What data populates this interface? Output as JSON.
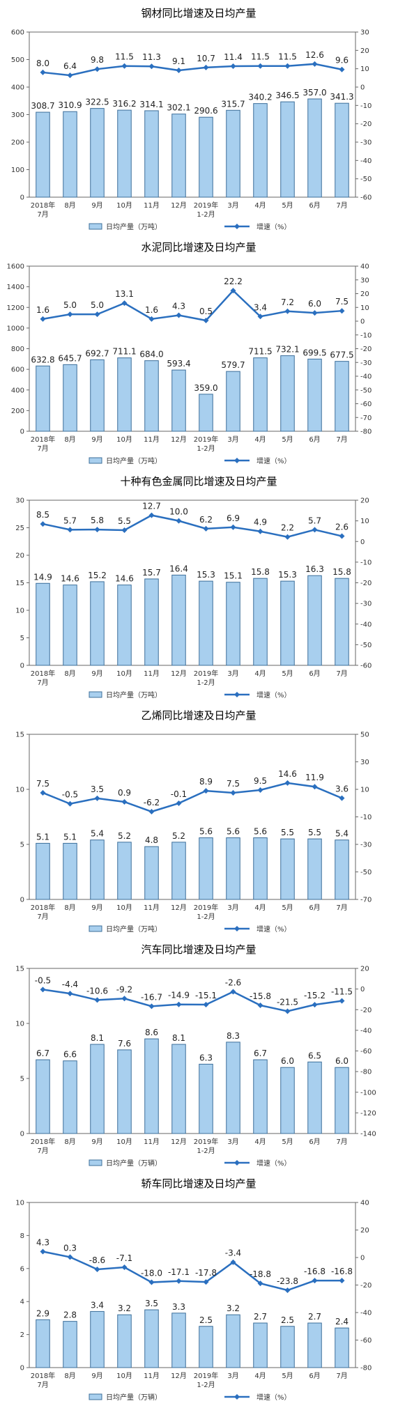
{
  "colors": {
    "bar_fill": "#a8cfee",
    "bar_stroke": "#3d6f9a",
    "line": "#2a6fbf",
    "axis": "#666666"
  },
  "chart_data": [
    {
      "type": "bar+line",
      "title": "钢材同比增速及日均产量",
      "categories": [
        [
          "2018年",
          "7月"
        ],
        [
          "8月"
        ],
        [
          "9月"
        ],
        [
          "10月"
        ],
        [
          "11月"
        ],
        [
          "12月"
        ],
        [
          "2019年",
          "1-2月"
        ],
        [
          "3月"
        ],
        [
          "4月"
        ],
        [
          "5月"
        ],
        [
          "6月"
        ],
        [
          "7月"
        ]
      ],
      "left_axis": {
        "min": 0,
        "max": 600,
        "ticks": [
          0,
          100,
          200,
          300,
          400,
          500,
          600
        ]
      },
      "right_axis": {
        "min": -60,
        "max": 30,
        "ticks": [
          -60,
          -50,
          -40,
          -30,
          -20,
          -10,
          0,
          10,
          20,
          30
        ]
      },
      "series": [
        {
          "name": "日均产量（万吨）",
          "kind": "bar",
          "axis": "left",
          "values": [
            308.7,
            310.9,
            322.5,
            316.2,
            314.1,
            302.1,
            290.6,
            315.7,
            340.2,
            346.5,
            357.0,
            341.3
          ],
          "labels": [
            "308.7",
            "310.9",
            "322.5",
            "316.2",
            "314.1",
            "302.1",
            "290.6",
            "315.7",
            "340.2",
            "346.5",
            "357.0",
            "341.3"
          ]
        },
        {
          "name": "增速（%）",
          "kind": "line",
          "axis": "right",
          "values": [
            8.0,
            6.4,
            9.8,
            11.5,
            11.3,
            9.1,
            10.7,
            11.4,
            11.5,
            11.5,
            12.6,
            9.6
          ],
          "labels": [
            "8.0",
            "6.4",
            "9.8",
            "11.5",
            "11.3",
            "9.1",
            "10.7",
            "11.4",
            "11.5",
            "11.5",
            "12.6",
            "9.6"
          ]
        }
      ]
    },
    {
      "type": "bar+line",
      "title": "水泥同比增速及日均产量",
      "categories": [
        [
          "2018年",
          "7月"
        ],
        [
          "8月"
        ],
        [
          "9月"
        ],
        [
          "10月"
        ],
        [
          "11月"
        ],
        [
          "12月"
        ],
        [
          "2019年",
          "1-2月"
        ],
        [
          "3月"
        ],
        [
          "4月"
        ],
        [
          "5月"
        ],
        [
          "6月"
        ],
        [
          "7月"
        ]
      ],
      "left_axis": {
        "min": 0,
        "max": 1600,
        "ticks": [
          0,
          200,
          400,
          600,
          800,
          1000,
          1200,
          1400,
          1600
        ]
      },
      "right_axis": {
        "min": -80,
        "max": 40,
        "ticks": [
          -80,
          -70,
          -60,
          -50,
          -40,
          -30,
          -20,
          -10,
          0,
          10,
          20,
          30,
          40
        ]
      },
      "series": [
        {
          "name": "日均产量（万吨）",
          "kind": "bar",
          "axis": "left",
          "values": [
            632.8,
            645.7,
            692.7,
            711.1,
            684.0,
            593.4,
            359.0,
            579.7,
            711.5,
            732.1,
            699.5,
            677.5
          ],
          "labels": [
            "632.8",
            "645.7",
            "692.7",
            "711.1",
            "684.0",
            "593.4",
            "359.0",
            "579.7",
            "711.5",
            "732.1",
            "699.5",
            "677.5"
          ]
        },
        {
          "name": "增速（%）",
          "kind": "line",
          "axis": "right",
          "values": [
            1.6,
            5.0,
            5.0,
            13.1,
            1.6,
            4.3,
            0.5,
            22.2,
            3.4,
            7.2,
            6.0,
            7.5
          ],
          "labels": [
            "1.6",
            "5.0",
            "5.0",
            "13.1",
            "1.6",
            "4.3",
            "0.5",
            "22.2",
            "3.4",
            "7.2",
            "6.0",
            "7.5"
          ]
        }
      ]
    },
    {
      "type": "bar+line",
      "title": "十种有色金属同比增速及日均产量",
      "categories": [
        [
          "2018年",
          "7月"
        ],
        [
          "8月"
        ],
        [
          "9月"
        ],
        [
          "10月"
        ],
        [
          "11月"
        ],
        [
          "12月"
        ],
        [
          "2019年",
          "1-2月"
        ],
        [
          "3月"
        ],
        [
          "4月"
        ],
        [
          "5月"
        ],
        [
          "6月"
        ],
        [
          "7月"
        ]
      ],
      "left_axis": {
        "min": 0,
        "max": 30,
        "ticks": [
          0,
          5,
          10,
          15,
          20,
          25,
          30
        ]
      },
      "right_axis": {
        "min": -60,
        "max": 20,
        "ticks": [
          -60,
          -50,
          -40,
          -30,
          -20,
          -10,
          0,
          10,
          20
        ]
      },
      "series": [
        {
          "name": "日均产量（万吨）",
          "kind": "bar",
          "axis": "left",
          "values": [
            14.9,
            14.6,
            15.2,
            14.6,
            15.7,
            16.4,
            15.3,
            15.1,
            15.8,
            15.3,
            16.3,
            15.8
          ],
          "labels": [
            "14.9",
            "14.6",
            "15.2",
            "14.6",
            "15.7",
            "16.4",
            "15.3",
            "15.1",
            "15.8",
            "15.3",
            "16.3",
            "15.8"
          ]
        },
        {
          "name": "增速（%）",
          "kind": "line",
          "axis": "right",
          "values": [
            8.5,
            5.7,
            5.8,
            5.5,
            12.7,
            10.0,
            6.2,
            6.9,
            4.9,
            2.2,
            5.7,
            2.6
          ],
          "labels": [
            "8.5",
            "5.7",
            "5.8",
            "5.5",
            "12.7",
            "10.0",
            "6.2",
            "6.9",
            "4.9",
            "2.2",
            "5.7",
            "2.6"
          ]
        }
      ]
    },
    {
      "type": "bar+line",
      "title": "乙烯同比增速及日均产量",
      "categories": [
        [
          "2018年",
          "7月"
        ],
        [
          "8月"
        ],
        [
          "9月"
        ],
        [
          "10月"
        ],
        [
          "11月"
        ],
        [
          "12月"
        ],
        [
          "2019年",
          "1-2月"
        ],
        [
          "3月"
        ],
        [
          "4月"
        ],
        [
          "5月"
        ],
        [
          "6月"
        ],
        [
          "7月"
        ]
      ],
      "left_axis": {
        "min": 0,
        "max": 15,
        "ticks": [
          0,
          5,
          10,
          15
        ]
      },
      "right_axis": {
        "min": -70,
        "max": 50,
        "ticks": [
          -70,
          -50,
          -30,
          -10,
          10,
          30,
          50
        ]
      },
      "series": [
        {
          "name": "日均产量（万吨）",
          "kind": "bar",
          "axis": "left",
          "values": [
            5.1,
            5.1,
            5.4,
            5.2,
            4.8,
            5.2,
            5.6,
            5.6,
            5.6,
            5.5,
            5.5,
            5.4
          ],
          "labels": [
            "5.1",
            "5.1",
            "5.4",
            "5.2",
            "4.8",
            "5.2",
            "5.6",
            "5.6",
            "5.6",
            "5.5",
            "5.5",
            "5.4"
          ]
        },
        {
          "name": "增速（%）",
          "kind": "line",
          "axis": "right",
          "values": [
            7.5,
            -0.5,
            3.5,
            0.9,
            -6.2,
            -0.1,
            8.9,
            7.5,
            9.5,
            14.6,
            11.9,
            3.6
          ],
          "labels": [
            "7.5",
            "-0.5",
            "3.5",
            "0.9",
            "-6.2",
            "-0.1",
            "8.9",
            "7.5",
            "9.5",
            "14.6",
            "11.9",
            "3.6"
          ]
        }
      ]
    },
    {
      "type": "bar+line",
      "title": "汽车同比增速及日均产量",
      "categories": [
        [
          "2018年",
          "7月"
        ],
        [
          "8月"
        ],
        [
          "9月"
        ],
        [
          "10月"
        ],
        [
          "11月"
        ],
        [
          "12月"
        ],
        [
          "2019年",
          "1-2月"
        ],
        [
          "3月"
        ],
        [
          "4月"
        ],
        [
          "5月"
        ],
        [
          "6月"
        ],
        [
          "7月"
        ]
      ],
      "left_axis": {
        "min": 0,
        "max": 15,
        "ticks": [
          0,
          5,
          10,
          15
        ]
      },
      "right_axis": {
        "min": -140,
        "max": 20,
        "ticks": [
          -140,
          -120,
          -100,
          -80,
          -60,
          -40,
          -20,
          0,
          20
        ]
      },
      "series": [
        {
          "name": "日均产量（万辆）",
          "kind": "bar",
          "axis": "left",
          "values": [
            6.7,
            6.6,
            8.1,
            7.6,
            8.6,
            8.1,
            6.3,
            8.3,
            6.7,
            6.0,
            6.5,
            6.0
          ],
          "labels": [
            "6.7",
            "6.6",
            "8.1",
            "7.6",
            "8.6",
            "8.1",
            "6.3",
            "8.3",
            "6.7",
            "6.0",
            "6.5",
            "6.0"
          ]
        },
        {
          "name": "增速（%）",
          "kind": "line",
          "axis": "right",
          "values": [
            -0.5,
            -4.4,
            -10.6,
            -9.2,
            -16.7,
            -14.9,
            -15.1,
            -2.6,
            -15.8,
            -21.5,
            -15.2,
            -11.5
          ],
          "labels": [
            "-0.5",
            "-4.4",
            "-10.6",
            "-9.2",
            "-16.7",
            "-14.9",
            "-15.1",
            "-2.6",
            "-15.8",
            "-21.5",
            "-15.2",
            "-11.5"
          ]
        }
      ]
    },
    {
      "type": "bar+line",
      "title": "轿车同比增速及日均产量",
      "categories": [
        [
          "2018年",
          "7月"
        ],
        [
          "8月"
        ],
        [
          "9月"
        ],
        [
          "10月"
        ],
        [
          "11月"
        ],
        [
          "12月"
        ],
        [
          "2019年",
          "1-2月"
        ],
        [
          "3月"
        ],
        [
          "4月"
        ],
        [
          "5月"
        ],
        [
          "6月"
        ],
        [
          "7月"
        ]
      ],
      "left_axis": {
        "min": 0,
        "max": 10,
        "ticks": [
          0,
          2,
          4,
          6,
          8,
          10
        ]
      },
      "right_axis": {
        "min": -80,
        "max": 40,
        "ticks": [
          -80,
          -60,
          -40,
          -20,
          0,
          20,
          40
        ]
      },
      "series": [
        {
          "name": "日均产量（万辆）",
          "kind": "bar",
          "axis": "left",
          "values": [
            2.9,
            2.8,
            3.4,
            3.2,
            3.5,
            3.3,
            2.5,
            3.2,
            2.7,
            2.5,
            2.7,
            2.4
          ],
          "labels": [
            "2.9",
            "2.8",
            "3.4",
            "3.2",
            "3.5",
            "3.3",
            "2.5",
            "3.2",
            "2.7",
            "2.5",
            "2.7",
            "2.4"
          ]
        },
        {
          "name": "增速（%）",
          "kind": "line",
          "axis": "right",
          "values": [
            4.3,
            0.3,
            -8.6,
            -7.1,
            -18.0,
            -17.1,
            -17.8,
            -3.4,
            -18.8,
            -23.8,
            -16.8,
            -16.8
          ],
          "labels": [
            "4.3",
            "0.3",
            "-8.6",
            "-7.1",
            "-18.0",
            "-17.1",
            "-17.8",
            "-3.4",
            "-18.8",
            "-23.8",
            "-16.8",
            "-16.8"
          ]
        }
      ]
    }
  ]
}
